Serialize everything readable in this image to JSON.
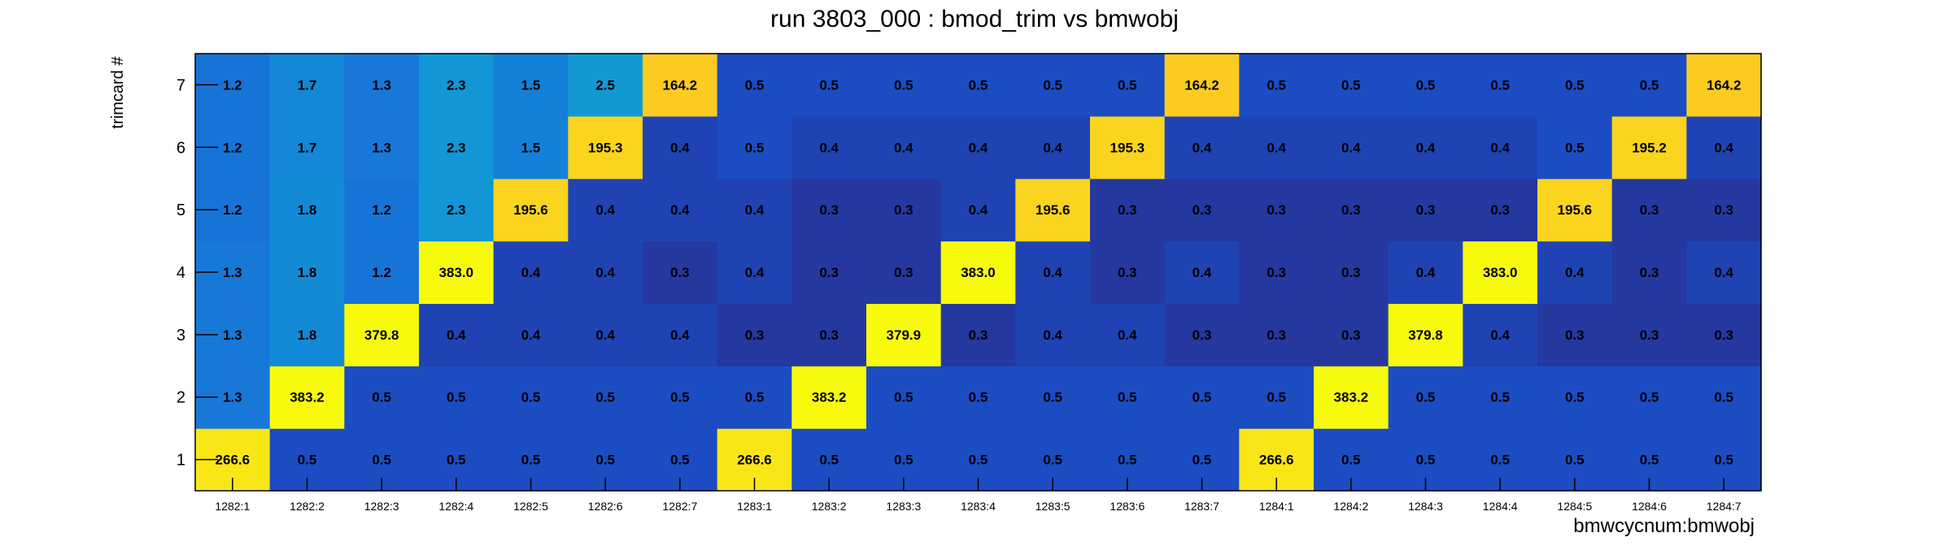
{
  "chart_data": {
    "type": "heatmap",
    "title": "run 3803_000 : bmod_trim vs bmwobj",
    "xlabel": "bmwcycnum:bmwobj",
    "ylabel": "trimcard #",
    "x_categories": [
      "1282:1",
      "1282:2",
      "1282:3",
      "1282:4",
      "1282:5",
      "1282:6",
      "1282:7",
      "1283:1",
      "1283:2",
      "1283:3",
      "1283:4",
      "1283:5",
      "1283:6",
      "1283:7",
      "1284:1",
      "1284:2",
      "1284:3",
      "1284:4",
      "1284:5",
      "1284:6",
      "1284:7"
    ],
    "y_categories": [
      "1",
      "2",
      "3",
      "4",
      "5",
      "6",
      "7"
    ],
    "values": [
      [
        266.6,
        0.5,
        0.5,
        0.5,
        0.5,
        0.5,
        0.5,
        266.6,
        0.5,
        0.5,
        0.5,
        0.5,
        0.5,
        0.5,
        266.6,
        0.5,
        0.5,
        0.5,
        0.5,
        0.5,
        0.5
      ],
      [
        1.3,
        383.2,
        0.5,
        0.5,
        0.5,
        0.5,
        0.5,
        0.5,
        383.2,
        0.5,
        0.5,
        0.5,
        0.5,
        0.5,
        0.5,
        383.2,
        0.5,
        0.5,
        0.5,
        0.5,
        0.5
      ],
      [
        1.3,
        1.8,
        379.8,
        0.4,
        0.4,
        0.4,
        0.4,
        0.3,
        0.3,
        379.9,
        0.3,
        0.4,
        0.4,
        0.3,
        0.3,
        0.3,
        379.8,
        0.4,
        0.3,
        0.3,
        0.3
      ],
      [
        1.3,
        1.8,
        1.2,
        383.0,
        0.4,
        0.4,
        0.3,
        0.4,
        0.3,
        0.3,
        383.0,
        0.4,
        0.3,
        0.4,
        0.3,
        0.3,
        0.4,
        383.0,
        0.4,
        0.3,
        0.4
      ],
      [
        1.2,
        1.8,
        1.2,
        2.3,
        195.6,
        0.4,
        0.4,
        0.4,
        0.3,
        0.3,
        0.4,
        195.6,
        0.3,
        0.3,
        0.3,
        0.3,
        0.3,
        0.3,
        195.6,
        0.3,
        0.3
      ],
      [
        1.2,
        1.7,
        1.3,
        2.3,
        1.5,
        195.3,
        0.4,
        0.5,
        0.4,
        0.4,
        0.4,
        0.4,
        195.3,
        0.4,
        0.4,
        0.4,
        0.4,
        0.4,
        0.5,
        195.2,
        0.4
      ],
      [
        1.2,
        1.7,
        1.3,
        2.3,
        1.5,
        2.5,
        164.2,
        0.5,
        0.5,
        0.5,
        0.5,
        0.5,
        0.5,
        164.2,
        0.5,
        0.5,
        0.5,
        0.5,
        0.5,
        0.5,
        164.2
      ]
    ],
    "colormap": "parula-like (dark blue → cyan → orange → yellow)",
    "color_scale": "log",
    "grid": false,
    "legend": "none",
    "colors": {
      "background": "#ffffff",
      "axis": "#000000",
      "cell_text": "#000000"
    }
  }
}
